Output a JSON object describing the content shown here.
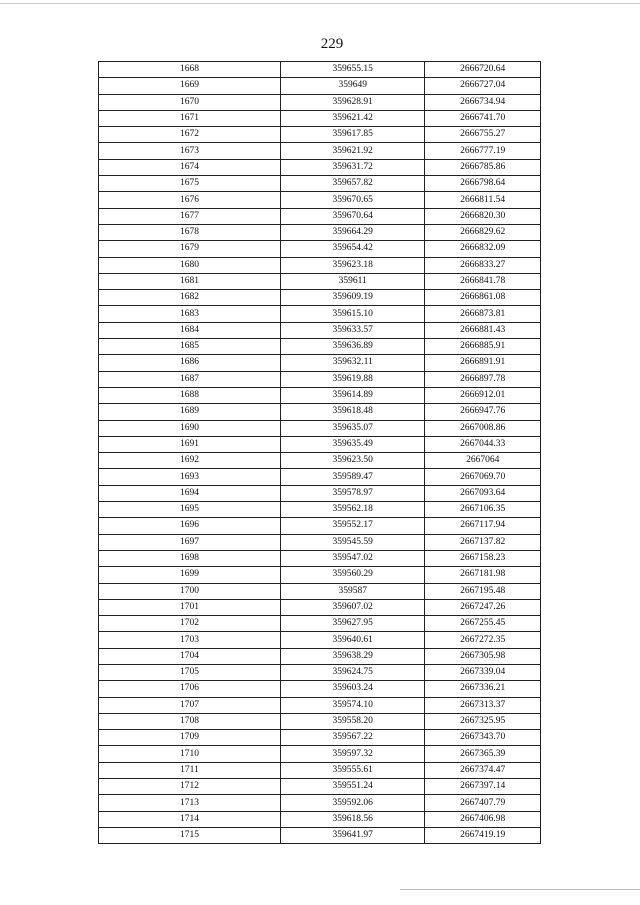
{
  "page_number": "229",
  "table": {
    "rows": [
      [
        "1668",
        "359655.15",
        "2666720.64"
      ],
      [
        "1669",
        "359649",
        "2666727.04"
      ],
      [
        "1670",
        "359628.91",
        "2666734.94"
      ],
      [
        "1671",
        "359621.42",
        "2666741.70"
      ],
      [
        "1672",
        "359617.85",
        "2666755.27"
      ],
      [
        "1673",
        "359621.92",
        "2666777.19"
      ],
      [
        "1674",
        "359631.72",
        "2666785.86"
      ],
      [
        "1675",
        "359657.82",
        "2666798.64"
      ],
      [
        "1676",
        "359670.65",
        "2666811.54"
      ],
      [
        "1677",
        "359670.64",
        "2666820.30"
      ],
      [
        "1678",
        "359664.29",
        "2666829.62"
      ],
      [
        "1679",
        "359654.42",
        "2666832.09"
      ],
      [
        "1680",
        "359623.18",
        "2666833.27"
      ],
      [
        "1681",
        "359611",
        "2666841.78"
      ],
      [
        "1682",
        "359609.19",
        "2666861.08"
      ],
      [
        "1683",
        "359615.10",
        "2666873.81"
      ],
      [
        "1684",
        "359633.57",
        "2666881.43"
      ],
      [
        "1685",
        "359636.89",
        "2666885.91"
      ],
      [
        "1686",
        "359632.11",
        "2666891.91"
      ],
      [
        "1687",
        "359619.88",
        "2666897.78"
      ],
      [
        "1688",
        "359614.89",
        "2666912.01"
      ],
      [
        "1689",
        "359618.48",
        "2666947.76"
      ],
      [
        "1690",
        "359635.07",
        "2667008.86"
      ],
      [
        "1691",
        "359635.49",
        "2667044.33"
      ],
      [
        "1692",
        "359623.50",
        "2667064"
      ],
      [
        "1693",
        "359589.47",
        "2667069.70"
      ],
      [
        "1694",
        "359578.97",
        "2667093.64"
      ],
      [
        "1695",
        "359562.18",
        "2667106.35"
      ],
      [
        "1696",
        "359552.17",
        "2667117.94"
      ],
      [
        "1697",
        "359545.59",
        "2667137.82"
      ],
      [
        "1698",
        "359547.02",
        "2667158.23"
      ],
      [
        "1699",
        "359560.29",
        "2667181.98"
      ],
      [
        "1700",
        "359587",
        "2667195.48"
      ],
      [
        "1701",
        "359607.02",
        "2667247.26"
      ],
      [
        "1702",
        "359627.95",
        "2667255.45"
      ],
      [
        "1703",
        "359640.61",
        "2667272.35"
      ],
      [
        "1704",
        "359638.29",
        "2667305.98"
      ],
      [
        "1705",
        "359624.75",
        "2667339.04"
      ],
      [
        "1706",
        "359603.24",
        "2667336.21"
      ],
      [
        "1707",
        "359574.10",
        "2667313.37"
      ],
      [
        "1708",
        "359558.20",
        "2667325.95"
      ],
      [
        "1709",
        "359567.22",
        "2667343.70"
      ],
      [
        "1710",
        "359597.32",
        "2667365.39"
      ],
      [
        "1711",
        "359555.61",
        "2667374.47"
      ],
      [
        "1712",
        "359551.24",
        "2667397.14"
      ],
      [
        "1713",
        "359592.06",
        "2667407.79"
      ],
      [
        "1714",
        "359618.56",
        "2667406.98"
      ],
      [
        "1715",
        "359641.97",
        "2667419.19"
      ]
    ]
  }
}
